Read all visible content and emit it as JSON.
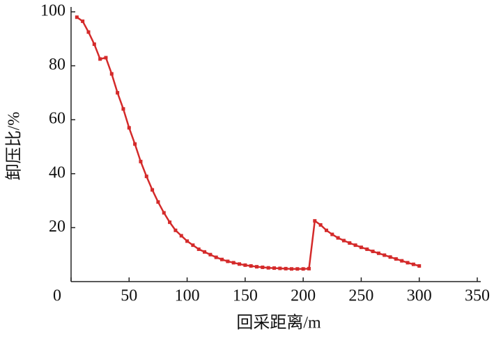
{
  "chart_data": {
    "type": "line",
    "xlabel": "回采距离/m",
    "ylabel": "卸压比/%",
    "x": [
      5,
      10,
      15,
      20,
      25,
      30,
      35,
      40,
      45,
      50,
      55,
      60,
      65,
      70,
      75,
      80,
      85,
      90,
      95,
      100,
      105,
      110,
      115,
      120,
      125,
      130,
      135,
      140,
      145,
      150,
      155,
      160,
      165,
      170,
      175,
      180,
      185,
      190,
      195,
      200,
      205,
      210,
      215,
      220,
      225,
      230,
      235,
      240,
      245,
      250,
      255,
      260,
      265,
      270,
      275,
      280,
      285,
      290,
      295,
      300
    ],
    "values": [
      98,
      96.5,
      92.5,
      88,
      82.5,
      83,
      77,
      70,
      64,
      57,
      51,
      44.5,
      39,
      34,
      29.5,
      25.5,
      22,
      19,
      17,
      15,
      13.5,
      12,
      11,
      10,
      9,
      8.2,
      7.5,
      7,
      6.5,
      6.1,
      5.8,
      5.5,
      5.3,
      5.1,
      5,
      4.9,
      4.8,
      4.7,
      4.7,
      4.7,
      4.8,
      22.5,
      21,
      19,
      17.5,
      16.2,
      15.2,
      14.3,
      13.5,
      12.7,
      12,
      11.2,
      10.5,
      9.8,
      9.1,
      8.4,
      7.7,
      7,
      6.4,
      5.8
    ],
    "color": "#d42a2a",
    "xlim": [
      0,
      350
    ],
    "xticks": [
      0,
      50,
      100,
      150,
      200,
      250,
      300,
      350
    ],
    "ylim": [
      0,
      100
    ],
    "yticks": [
      20,
      40,
      60,
      80,
      100
    ]
  }
}
